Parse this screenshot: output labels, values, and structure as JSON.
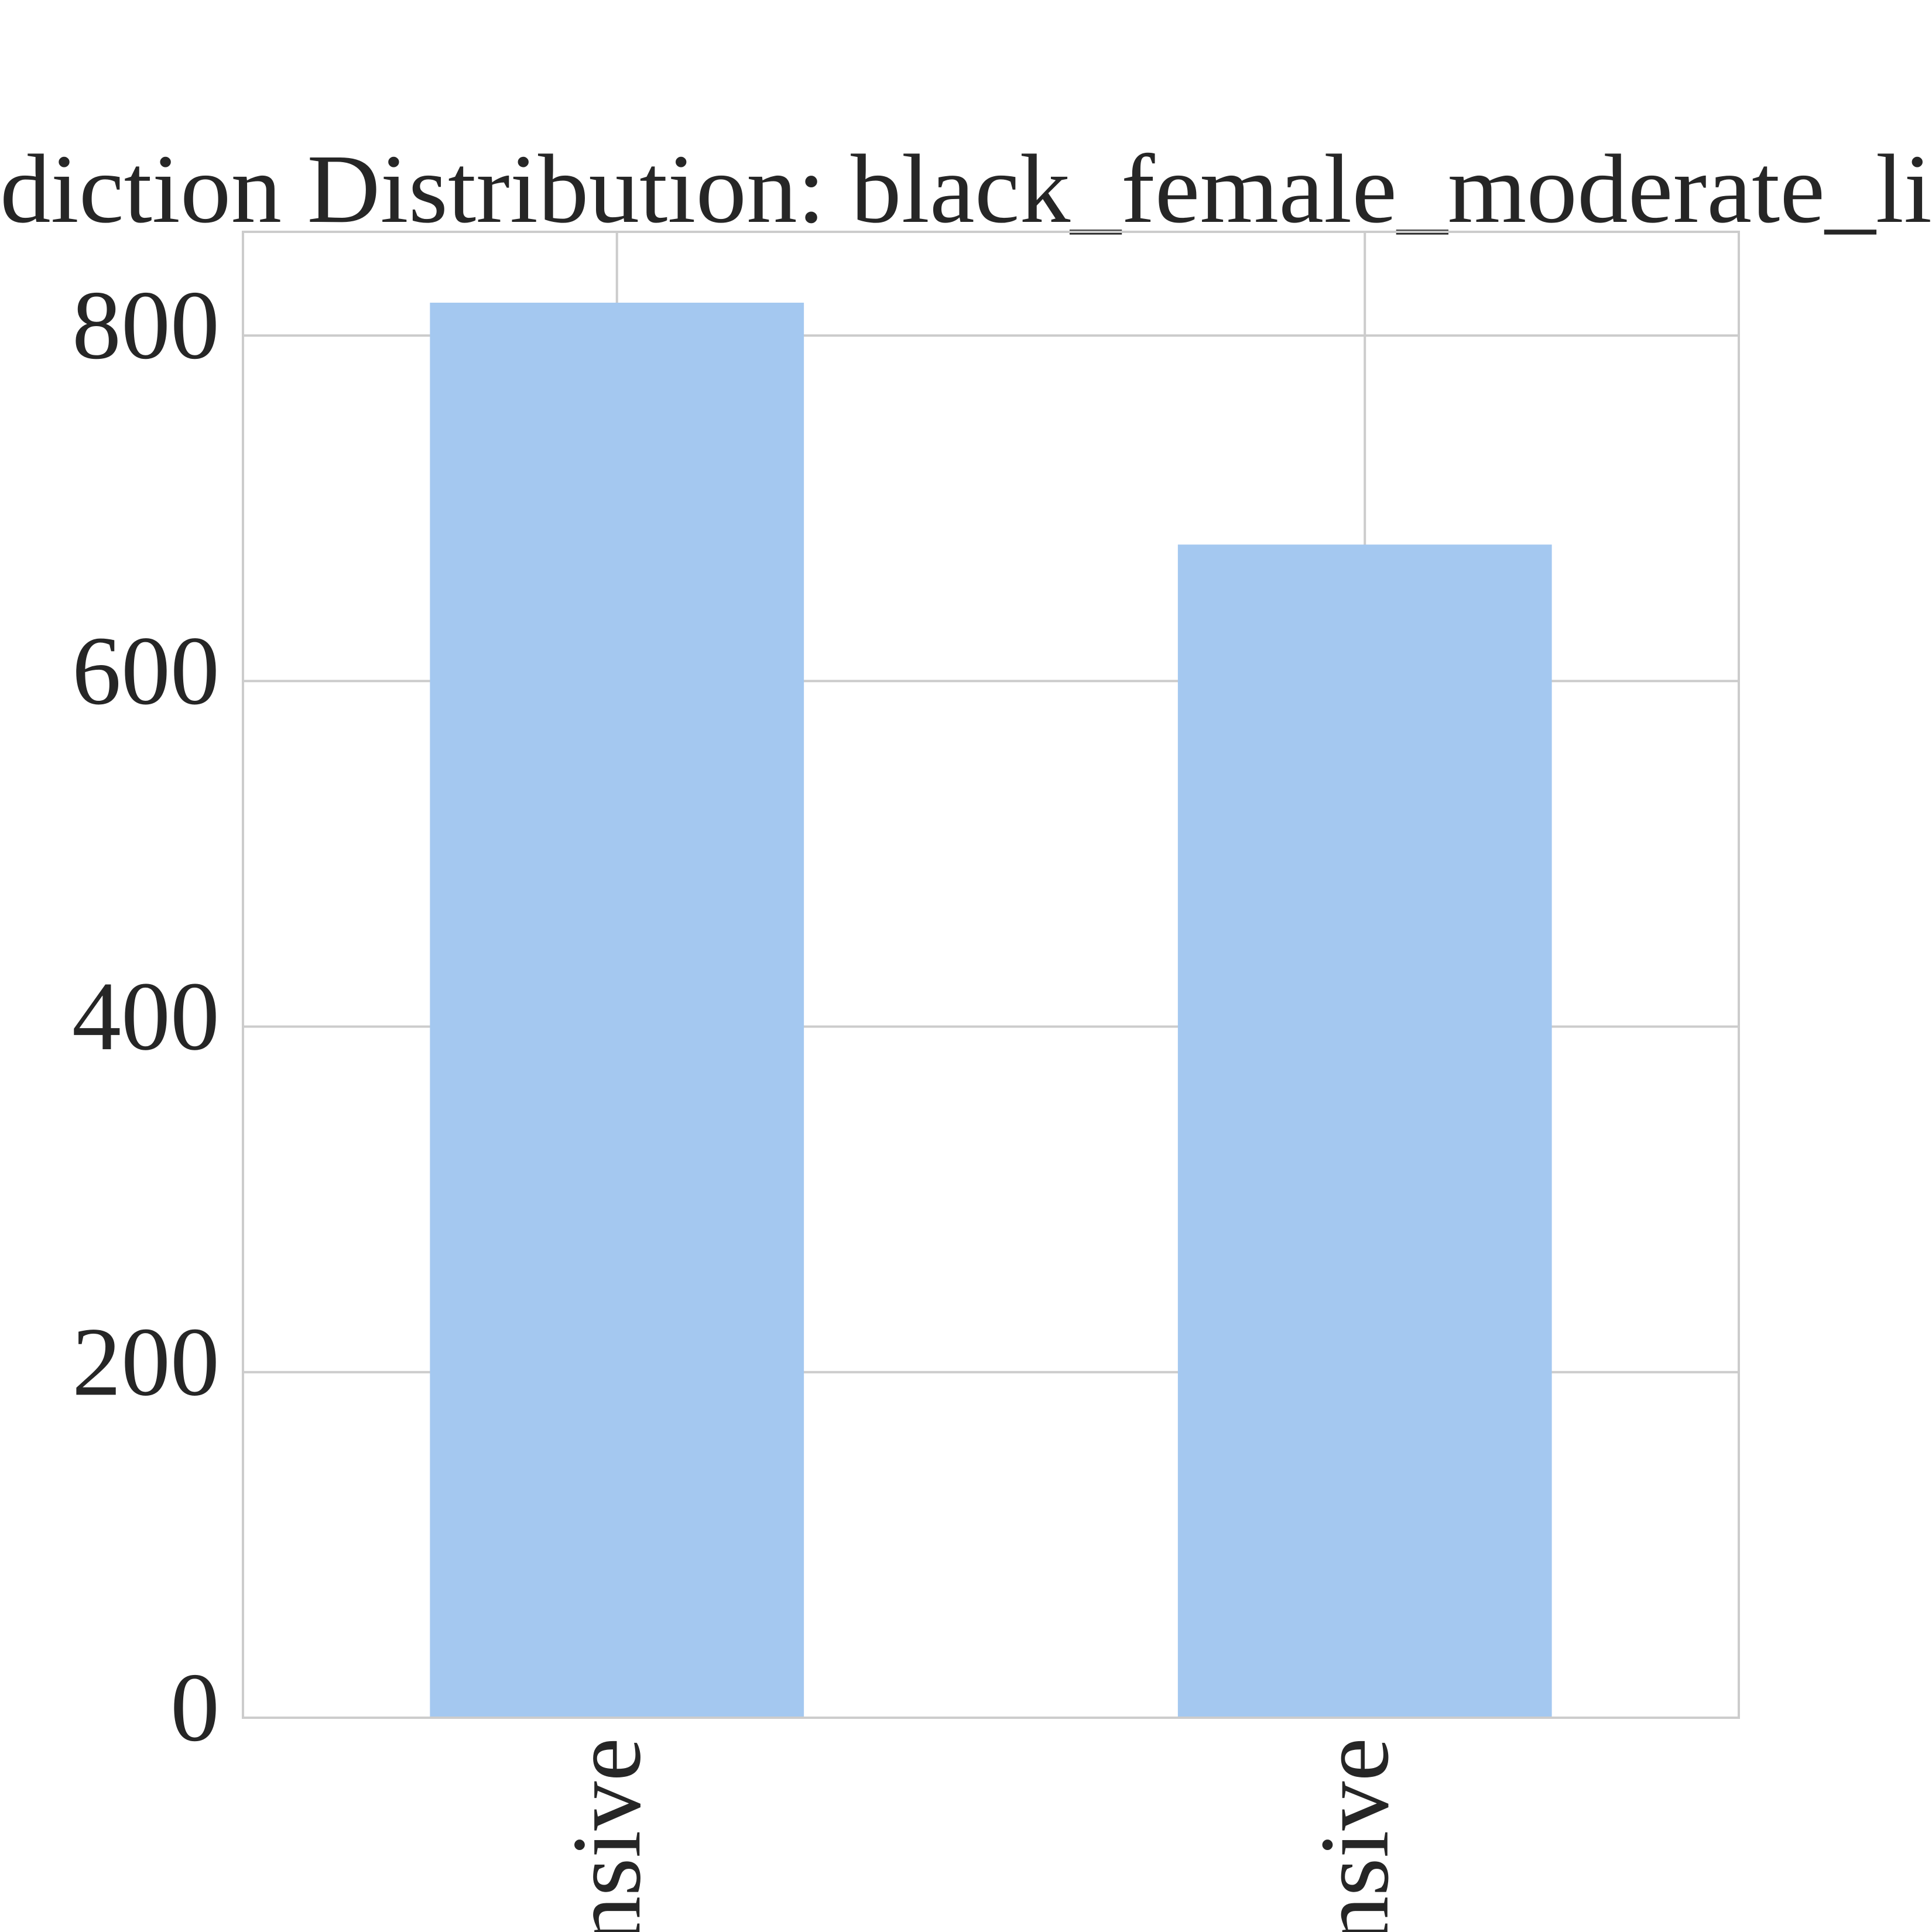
{
  "chart_data": {
    "type": "bar",
    "title": "diction Distribution: black_female_moderate_li",
    "categories": [
      "nsive",
      "nsive"
    ],
    "values": [
      819,
      679
    ],
    "color": "#a4c8f0",
    "ylim": [
      0,
      860
    ],
    "yticks": [
      0,
      200,
      400,
      600,
      800
    ],
    "grid": true
  }
}
